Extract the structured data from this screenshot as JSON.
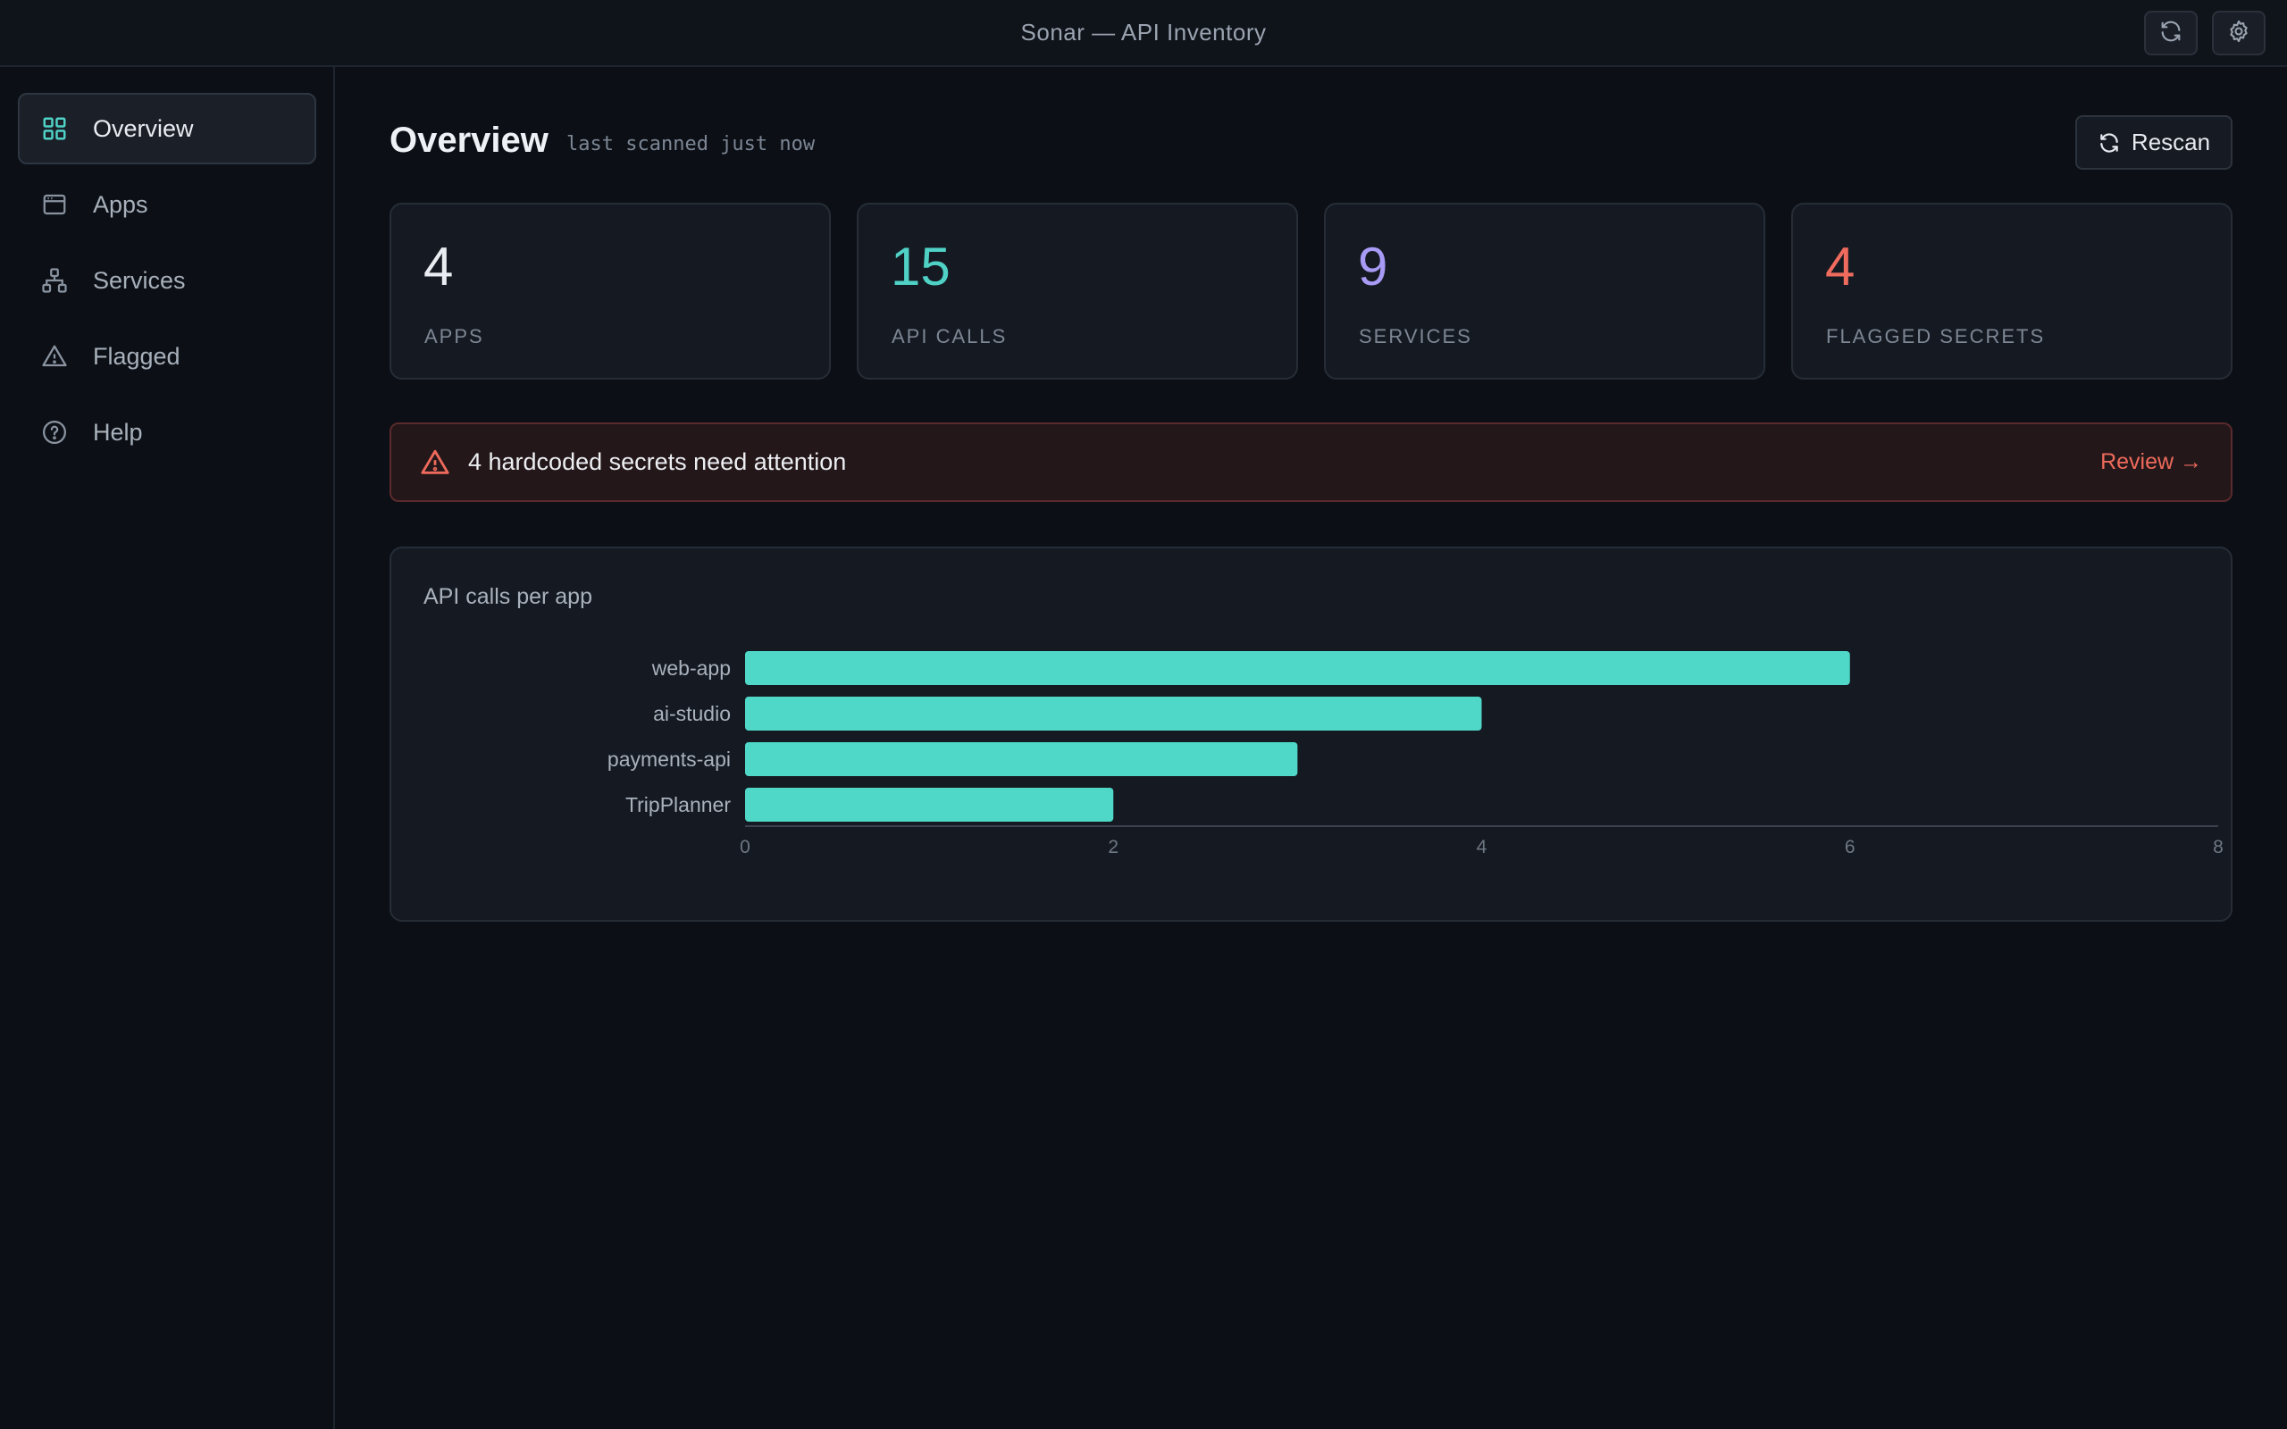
{
  "window": {
    "title": "Sonar — API Inventory"
  },
  "titlebar": {
    "buttons": [
      {
        "icon": "refresh-icon"
      },
      {
        "icon": "gear-icon"
      }
    ]
  },
  "sidebar": {
    "items": [
      {
        "label": "Overview",
        "icon": "grid-icon",
        "active": true
      },
      {
        "label": "Apps",
        "icon": "browser-window-icon",
        "active": false
      },
      {
        "label": "Services",
        "icon": "network-icon",
        "active": false
      },
      {
        "label": "Flagged",
        "icon": "warning-triangle-icon",
        "active": false
      },
      {
        "label": "Help",
        "icon": "help-circle-icon",
        "active": false
      }
    ]
  },
  "main": {
    "title": "Overview",
    "scan_note": "last scanned just now",
    "rescan_label": "Rescan",
    "stats": [
      {
        "value": "4",
        "label": "APPS",
        "color": "#e9ecf1"
      },
      {
        "value": "15",
        "label": "API CALLS",
        "color": "#4fd1c5"
      },
      {
        "value": "9",
        "label": "SERVICES",
        "color": "#a89bf5"
      },
      {
        "value": "4",
        "label": "FLAGGED SECRETS",
        "color": "#ef6b5e"
      }
    ],
    "alert": {
      "message": "4 hardcoded secrets need attention",
      "action": "Review →",
      "color": "#ee6a5c"
    }
  },
  "chart_data": {
    "type": "bar",
    "orientation": "horizontal",
    "title": "API calls per app",
    "categories": [
      "web-app",
      "ai-studio",
      "payments-api",
      "TripPlanner"
    ],
    "values": [
      6,
      4,
      3,
      2
    ],
    "xlim": [
      0,
      8
    ],
    "xticks": [
      0,
      2,
      4,
      6,
      8
    ],
    "bar_color": "#4fd8c8",
    "grid": false
  }
}
